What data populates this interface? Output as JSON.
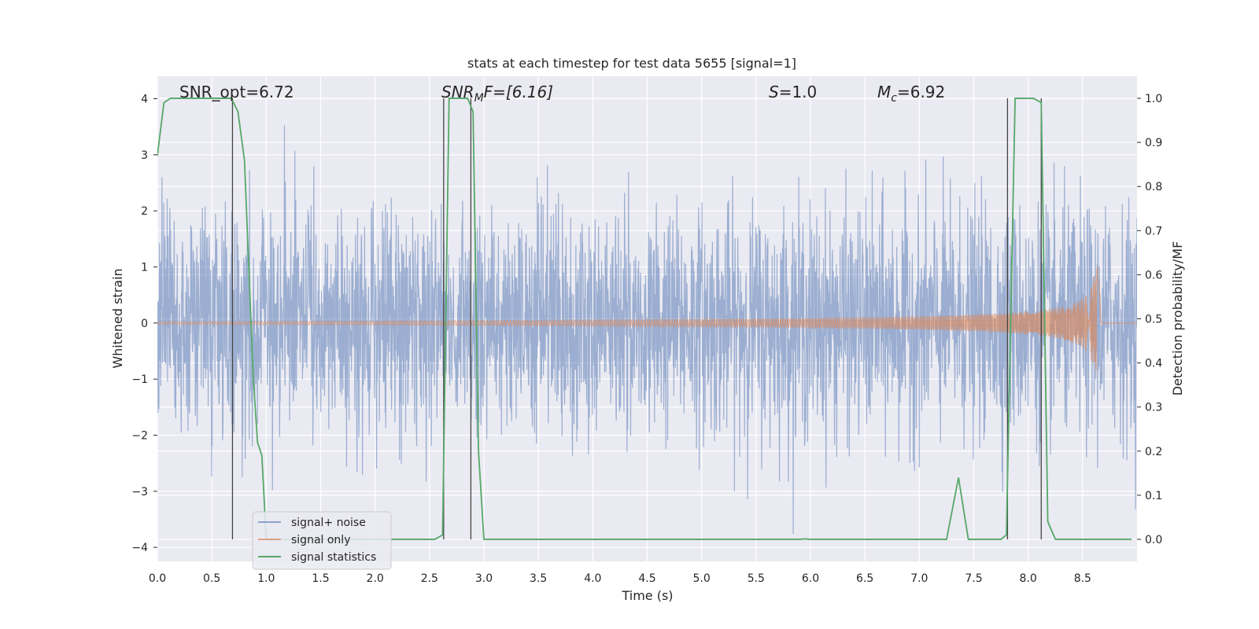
{
  "chart_data": {
    "type": "line",
    "title": "stats at each timestep for test data 5655 [signal=1]",
    "xlabel": "Time (s)",
    "ylabel_left": "Whitened strain",
    "ylabel_right": "Detection probability/MF",
    "xlim": [
      0.0,
      9.0
    ],
    "ylim_left": [
      -4.25,
      4.4
    ],
    "ylim_right": [
      -0.05,
      1.05
    ],
    "x_ticks": [
      "0.0",
      "0.5",
      "1.0",
      "1.5",
      "2.0",
      "2.5",
      "3.0",
      "3.5",
      "4.0",
      "4.5",
      "5.0",
      "5.5",
      "6.0",
      "6.5",
      "7.0",
      "7.5",
      "8.0",
      "8.5"
    ],
    "y_ticks_left": [
      "4",
      "3",
      "2",
      "1",
      "0",
      "−1",
      "−2",
      "−3",
      "−4"
    ],
    "y_ticks_right": [
      "1.0",
      "0.9",
      "0.8",
      "0.7",
      "0.6",
      "0.5",
      "0.4",
      "0.3",
      "0.2",
      "0.1",
      "0.0"
    ],
    "grid": true,
    "background": "#eaeaf2",
    "legend_position": "lower-left",
    "annotations": {
      "snr_opt": "SNR_opt=6.72",
      "snr_mf_base": "SNR",
      "snr_mf_sub": "M",
      "snr_mf_rest": "F=[6.16]",
      "s_var": "S",
      "s_rest": "=1.0",
      "mc_var": "M",
      "mc_sub": "c",
      "mc_rest": "=6.92"
    },
    "series": [
      {
        "name": "signal+ noise",
        "color": "#4c72b0",
        "alpha": 0.5,
        "axis": "left",
        "description": "noise envelope",
        "x_range": [
          0.0,
          9.0
        ],
        "std": 1.0
      },
      {
        "name": "signal only",
        "color": "#dd8452",
        "alpha": 0.6,
        "axis": "left",
        "chirp": {
          "start": 0.0,
          "end": 8.65,
          "peak_amplitude": 1.0
        }
      },
      {
        "name": "signal statistics",
        "color": "#55a868",
        "axis": "right",
        "x": [
          0.0,
          0.06,
          0.12,
          0.6,
          0.68,
          0.74,
          0.8,
          0.88,
          0.92,
          0.96,
          1.0,
          2.55,
          2.62,
          2.68,
          2.85,
          2.9,
          2.95,
          3.0,
          5.9,
          5.95,
          6.0,
          7.25,
          7.36,
          7.45,
          7.75,
          7.8,
          7.88,
          8.05,
          8.12,
          8.18,
          8.25,
          8.95
        ],
        "y": [
          0.87,
          0.99,
          1.0,
          1.0,
          1.0,
          0.97,
          0.86,
          0.37,
          0.22,
          0.19,
          0.0,
          0.0,
          0.01,
          1.0,
          1.0,
          0.97,
          0.2,
          0.0,
          0.0,
          0.001,
          0.0,
          0.0,
          0.14,
          0.0,
          0.0,
          0.01,
          1.0,
          1.0,
          0.99,
          0.04,
          0.0,
          0.0
        ]
      }
    ],
    "vertical_lines": [
      0.69,
      2.63,
      2.88,
      7.81,
      8.12
    ]
  }
}
